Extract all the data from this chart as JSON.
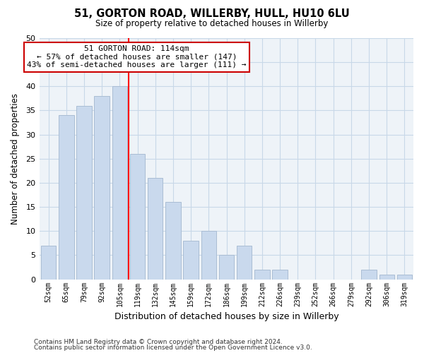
{
  "title": "51, GORTON ROAD, WILLERBY, HULL, HU10 6LU",
  "subtitle": "Size of property relative to detached houses in Willerby",
  "xlabel": "Distribution of detached houses by size in Willerby",
  "ylabel": "Number of detached properties",
  "categories": [
    "52sqm",
    "65sqm",
    "79sqm",
    "92sqm",
    "105sqm",
    "119sqm",
    "132sqm",
    "145sqm",
    "159sqm",
    "172sqm",
    "186sqm",
    "199sqm",
    "212sqm",
    "226sqm",
    "239sqm",
    "252sqm",
    "266sqm",
    "279sqm",
    "292sqm",
    "306sqm",
    "319sqm"
  ],
  "values": [
    7,
    34,
    36,
    38,
    40,
    26,
    21,
    16,
    8,
    10,
    5,
    7,
    2,
    2,
    0,
    0,
    0,
    0,
    2,
    1,
    1
  ],
  "bar_color": "#c9d9ed",
  "bar_edgecolor": "#aabdd4",
  "grid_color": "#c8d8e8",
  "background_color": "#ffffff",
  "plot_bg_color": "#eef3f8",
  "red_line_x": 4.5,
  "marker_label": "51 GORTON ROAD: 114sqm",
  "annotation_line1": "← 57% of detached houses are smaller (147)",
  "annotation_line2": "43% of semi-detached houses are larger (111) →",
  "ylim": [
    0,
    50
  ],
  "yticks": [
    0,
    5,
    10,
    15,
    20,
    25,
    30,
    35,
    40,
    45,
    50
  ],
  "footnote1": "Contains HM Land Registry data © Crown copyright and database right 2024.",
  "footnote2": "Contains public sector information licensed under the Open Government Licence v3.0."
}
